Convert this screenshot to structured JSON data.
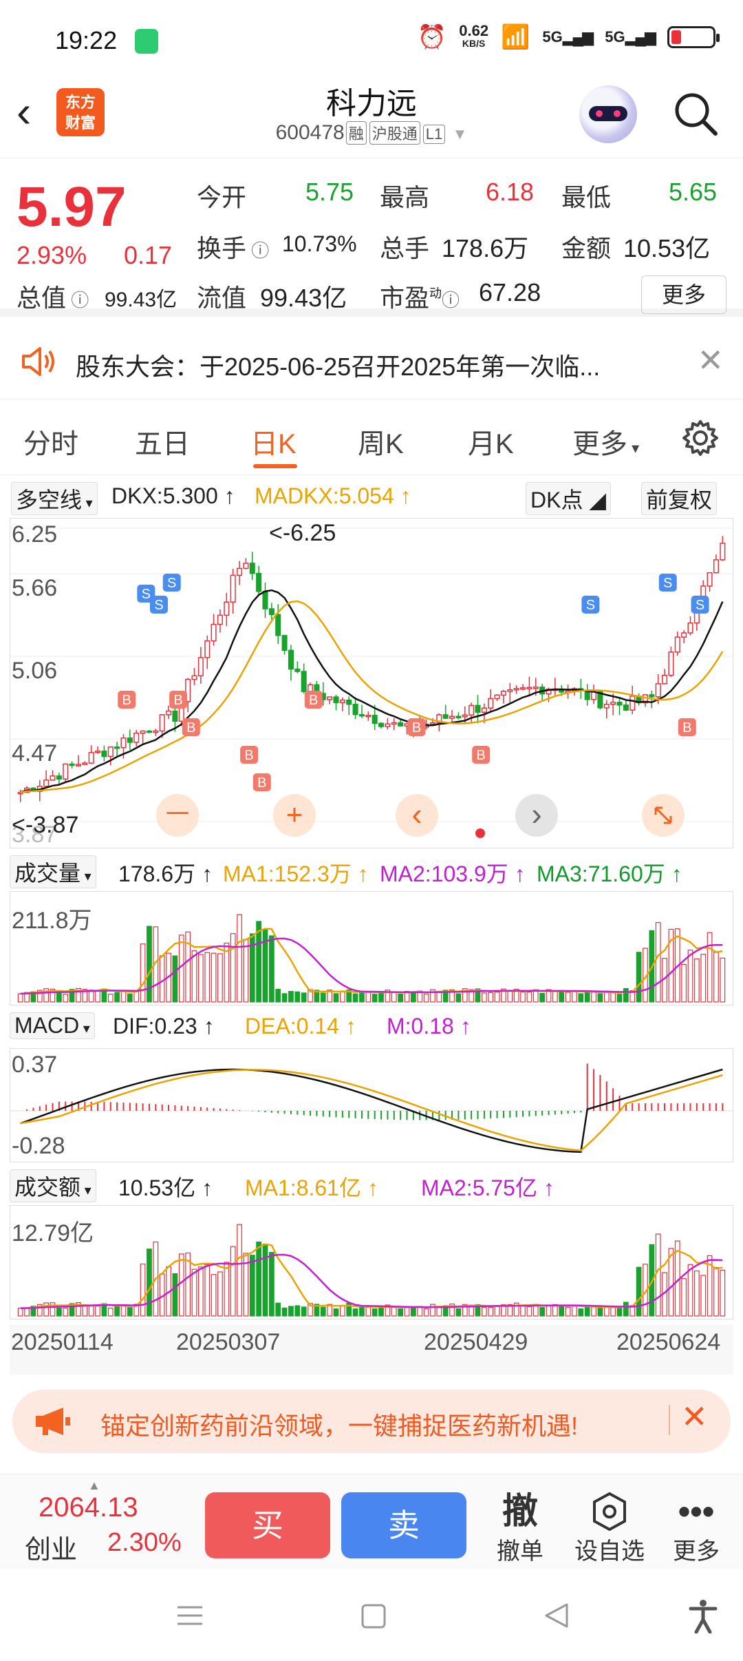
{
  "status_bar": {
    "time": "19:22",
    "net_speed_value": "0.62",
    "net_speed_unit": "KB/S",
    "sig1": "5G",
    "sig2": "5G"
  },
  "header": {
    "logo_line1": "东方",
    "logo_line2": "财富",
    "name": "科力远",
    "code": "600478",
    "tags": [
      "融",
      "沪股通",
      "L1"
    ]
  },
  "quote": {
    "price": "5.97",
    "pct": "2.93%",
    "change": "0.17",
    "rows": [
      [
        {
          "label": "今开",
          "value": "5.75",
          "color": "green"
        },
        {
          "label": "最高",
          "value": "6.18",
          "color": "red"
        },
        {
          "label": "最低",
          "value": "5.65",
          "color": "green"
        }
      ],
      [
        {
          "label": "换手",
          "value": "10.73%",
          "color": "dark"
        },
        {
          "label": "总手",
          "value": "178.6万",
          "color": "dark"
        },
        {
          "label": "金额",
          "value": "10.53亿",
          "color": "dark"
        }
      ],
      [
        {
          "label": "总值",
          "value": "99.43亿",
          "color": "dark"
        },
        {
          "label": "流值",
          "value": "99.43亿",
          "color": "dark"
        },
        {
          "label": "市盈",
          "value": "67.28",
          "color": "dark"
        }
      ]
    ],
    "pe_superscript": "动",
    "more": "更多"
  },
  "notice": {
    "text": "股东大会：于2025-06-25召开2025年第一次临..."
  },
  "tabs": {
    "items": [
      "分时",
      "五日",
      "日K",
      "周K",
      "月K",
      "更多"
    ],
    "active": "日K"
  },
  "kline": {
    "indicator": "多空线",
    "dkx": "DKX:5.300",
    "madkx": "MADKX:5.054",
    "dk_btn": "DK点",
    "adjust_btn": "前复权",
    "axis": [
      "6.25",
      "5.66",
      "5.06",
      "4.47",
      "3.87"
    ],
    "high_note": "<-6.25",
    "low_note": "<-3.87",
    "nav": {
      "minus": "一",
      "plus": "+",
      "prev": "‹",
      "next": "›"
    }
  },
  "volume": {
    "indicator": "成交量",
    "value": "178.6万",
    "ma1": "MA1:152.3万",
    "ma2": "MA2:103.9万",
    "ma3": "MA3:71.60万",
    "max": "211.8万"
  },
  "macd": {
    "indicator": "MACD",
    "dif": "DIF:0.23",
    "dea": "DEA:0.14",
    "m": "M:0.18",
    "top": "0.37",
    "bottom": "-0.28"
  },
  "amount": {
    "indicator": "成交额",
    "value": "10.53亿",
    "ma1": "MA1:8.61亿",
    "ma2": "MA2:5.75亿",
    "max": "12.79亿"
  },
  "dates": [
    "20250114",
    "20250307",
    "20250429",
    "20250624"
  ],
  "ad": {
    "text": "锚定创新药前沿领域，一键捕捉医药新机遇!"
  },
  "trade": {
    "index_value": "2064.13",
    "index_name": "创业",
    "index_pct": "2.30%",
    "buy": "买",
    "sell": "卖",
    "cancel_icon": "撤",
    "cancel": "撤单",
    "watch": "设自选",
    "more": "更多"
  },
  "colors": {
    "up": "#e8313b",
    "down": "#17a32c",
    "accent": "#f26322",
    "dkx": "#111111",
    "madkx": "#eaa300",
    "ma2": "#c21fd0"
  }
}
